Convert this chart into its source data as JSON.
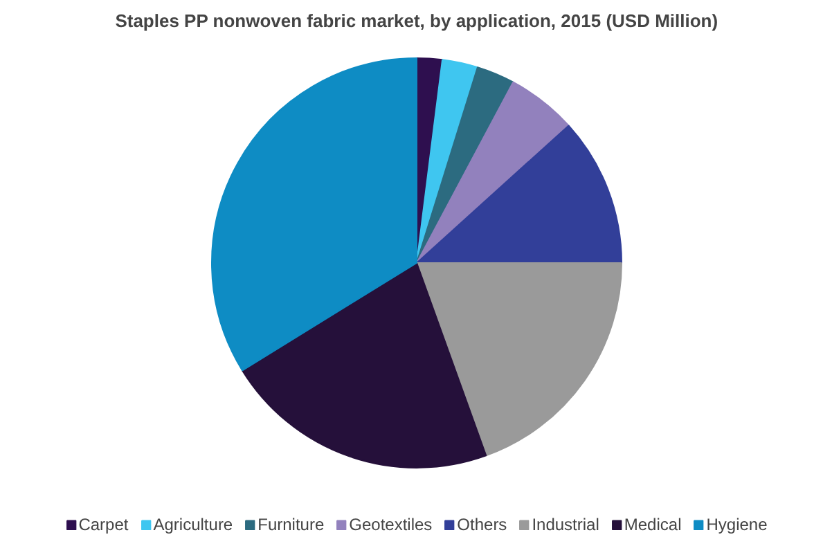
{
  "chart_data": {
    "type": "pie",
    "title": "Staples PP nonwoven fabric market, by application, 2015 (USD Million)",
    "categories": [
      "Carpet",
      "Agriculture",
      "Furniture",
      "Geotextiles",
      "Others",
      "Industrial",
      "Medical",
      "Hygiene"
    ],
    "values": [
      2.0,
      2.8,
      3.0,
      5.5,
      11.7,
      19.5,
      21.7,
      33.8
    ],
    "colors": [
      "#2e0f4f",
      "#3fc6f0",
      "#2c6b80",
      "#9281bd",
      "#323f99",
      "#9a9a9a",
      "#25103a",
      "#0e8cc4"
    ],
    "legend": "bottom"
  }
}
